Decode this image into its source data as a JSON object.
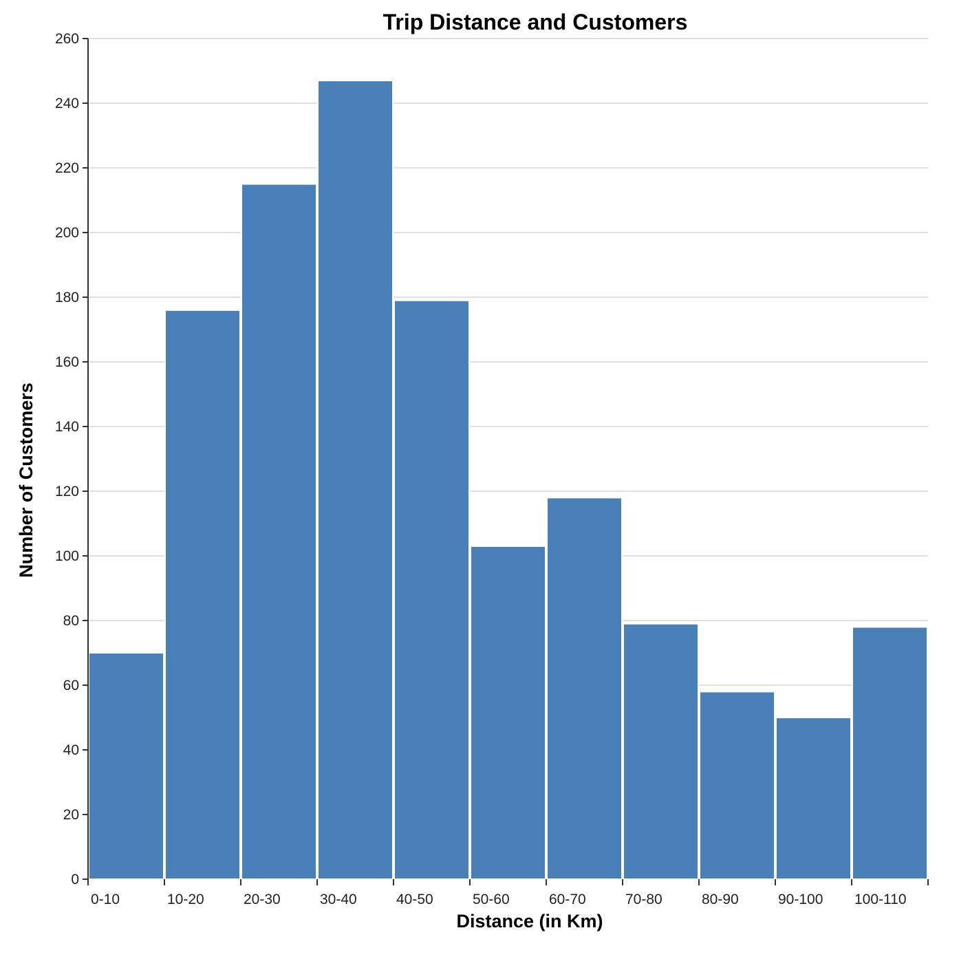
{
  "chart_data": {
    "type": "bar",
    "title": "Trip Distance and Customers",
    "xlabel": "Distance (in Km)",
    "ylabel": "Number of Customers",
    "categories": [
      "0-10",
      "10-20",
      "20-30",
      "30-40",
      "40-50",
      "50-60",
      "60-70",
      "70-80",
      "80-90",
      "90-100",
      "100-110"
    ],
    "bin_edges": [
      0,
      10,
      20,
      30,
      40,
      50,
      60,
      70,
      80,
      90,
      100,
      110
    ],
    "values": [
      70,
      176,
      215,
      247,
      179,
      103,
      118,
      79,
      58,
      50,
      78
    ],
    "ylim": [
      0,
      260
    ],
    "yticks": [
      0,
      20,
      40,
      60,
      80,
      100,
      120,
      140,
      160,
      180,
      200,
      220,
      240,
      260
    ],
    "grid": true,
    "bar_color": "#4a80b8"
  }
}
